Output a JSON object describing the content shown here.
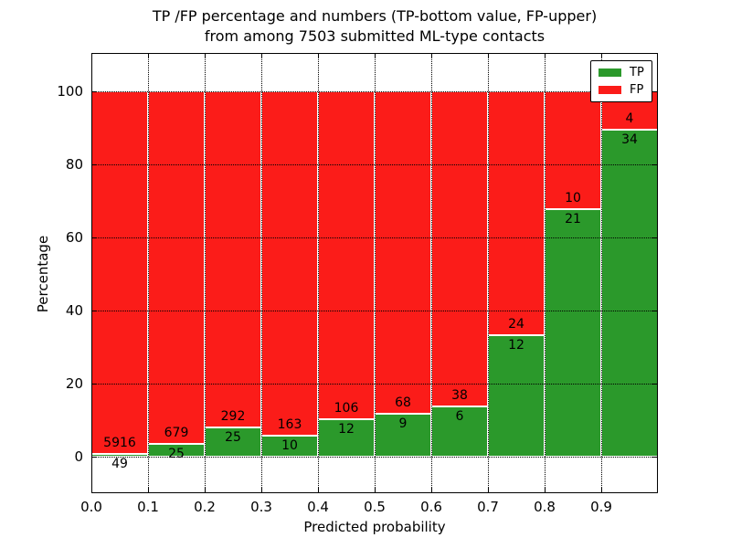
{
  "chart_data": {
    "type": "bar",
    "subtype": "stacked-percentage-histogram",
    "title_line1": "TP /FP percentage and numbers (TP-bottom value, FP-upper)",
    "title_line2": "from among 7503 submitted ML-type contacts",
    "xlabel": "Predicted probability",
    "ylabel": "Percentage",
    "total_contacts": 7503,
    "xlim": [
      0.0,
      1.0
    ],
    "ylim": [
      -10,
      110.5
    ],
    "bin_edges": [
      0.0,
      0.1,
      0.2,
      0.3,
      0.4,
      0.5,
      0.6,
      0.7,
      0.8,
      0.9,
      1.0
    ],
    "x_tick_labels": [
      "0.0",
      "0.1",
      "0.2",
      "0.3",
      "0.4",
      "0.5",
      "0.6",
      "0.7",
      "0.8",
      "0.9"
    ],
    "y_tick_labels": [
      "0",
      "20",
      "40",
      "60",
      "80",
      "100"
    ],
    "y_tick_values": [
      0,
      20,
      40,
      60,
      80,
      100
    ],
    "grid": "dotted-black-both-axes",
    "legend": {
      "position": "upper-right",
      "entries": [
        {
          "label": "TP",
          "color": "#2b992b"
        },
        {
          "label": "FP",
          "color": "#fb1c19"
        }
      ]
    },
    "series": [
      {
        "name": "TP",
        "stack_position": "bottom",
        "color": "#2b992b",
        "counts": [
          49,
          25,
          25,
          10,
          12,
          9,
          6,
          12,
          21,
          34
        ]
      },
      {
        "name": "FP",
        "stack_position": "top",
        "color": "#fb1c19",
        "counts": [
          5916,
          679,
          292,
          163,
          106,
          68,
          38,
          24,
          10,
          4
        ]
      }
    ],
    "tp_percent_by_bin": [
      0.82,
      3.55,
      7.89,
      5.78,
      10.17,
      11.69,
      13.64,
      33.33,
      67.74,
      89.47
    ]
  },
  "colors": {
    "tp_green": "#2b992b",
    "fp_red": "#fb1c19",
    "grid": "#000000",
    "background": "#ffffff",
    "text": "#000000"
  }
}
